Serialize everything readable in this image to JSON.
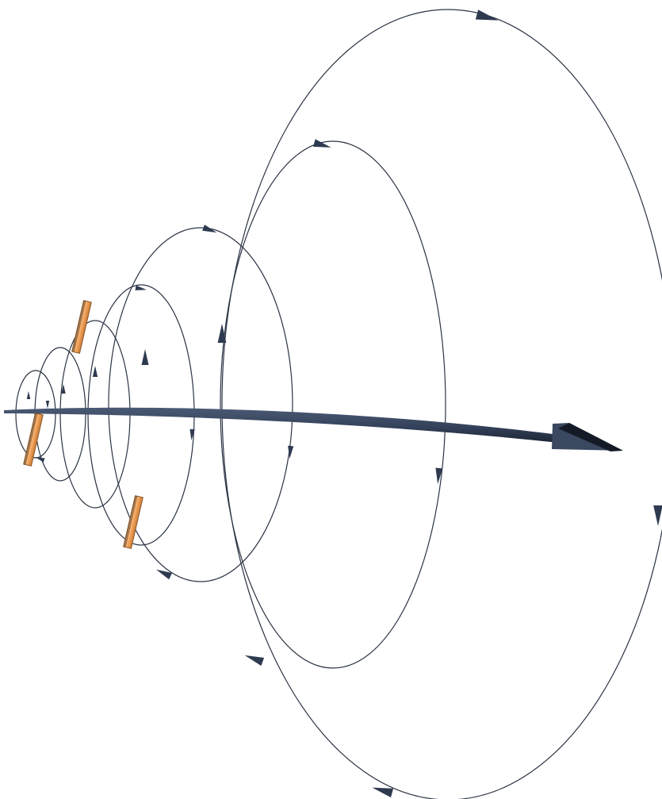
{
  "diagram": {
    "description_visible_text": "",
    "colors": {
      "background": "#ffffff",
      "loop_line": "#2b3444",
      "loop_arrowhead": "#2e3a4f",
      "main_arrow": "#3a4860",
      "main_arrow_shadow": "#1c2230",
      "bar_fill": "#f4a65f",
      "bar_edge": "#8a5a2a",
      "bar_highlight": "#ffd3a4"
    },
    "elements": {
      "field_loops_count": 7,
      "main_arrow": "current-direction-arrow",
      "bars_count": 3
    }
  }
}
